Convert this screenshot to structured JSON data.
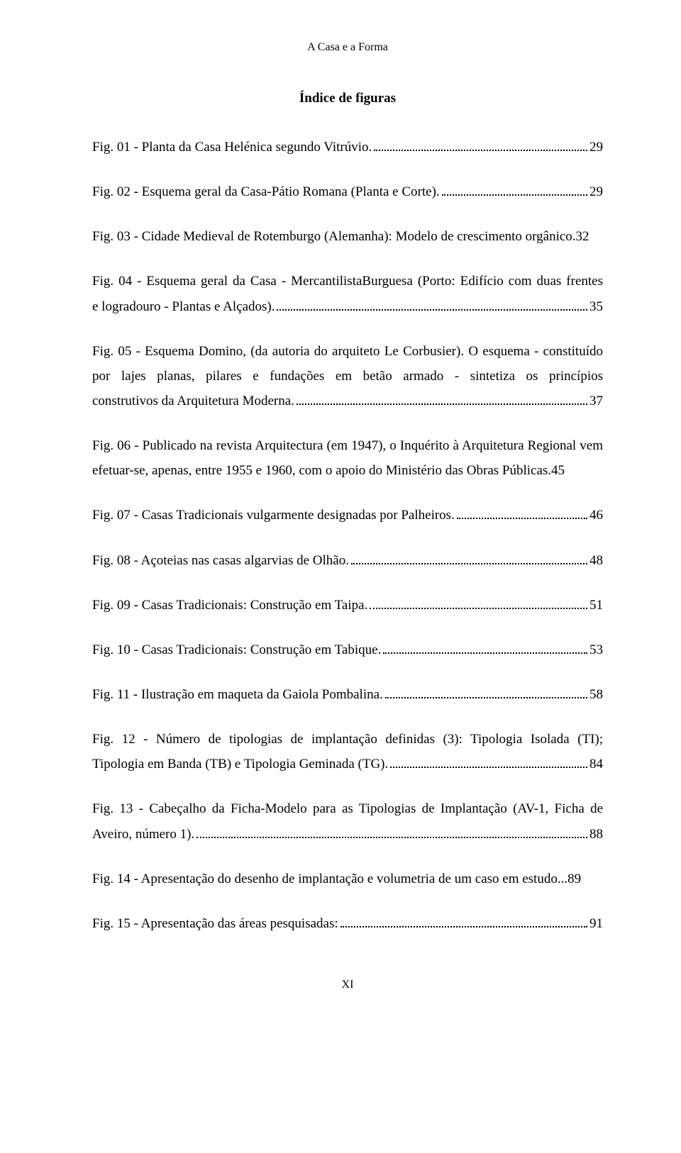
{
  "header": "A Casa e a Forma",
  "title": "Índice de figuras",
  "entries": [
    {
      "label": "Fig. 01 - Planta da Casa Helénica segundo Vitrúvio.",
      "page": "29",
      "multi": false
    },
    {
      "label": "Fig. 02 - Esquema geral da Casa-Pátio Romana (Planta e Corte).",
      "page": "29",
      "multi": false
    },
    {
      "pre": "Fig. 03 - Cidade Medieval de Rotemburgo (Alemanha): Modelo de crescimento orgânico.",
      "page": "32",
      "multi": true,
      "inline_page": true
    },
    {
      "pre": "Fig. 04 - Esquema geral da Casa - MercantilistaBurguesa (Porto: Edifício com duas frentes",
      "label": "e logradouro - Plantas e Alçados).",
      "page": "35",
      "multi": true
    },
    {
      "pre": "Fig. 05 - Esquema Domino, (da autoria do arquiteto Le Corbusier). O esquema - constituído por lajes planas, pilares e fundações em betão armado - sintetiza os princípios",
      "label": "construtivos da Arquitetura Moderna.",
      "page": "37",
      "multi": true
    },
    {
      "pre": "Fig. 06 - Publicado na revista Arquitectura (em 1947), o Inquérito à Arquitetura Regional vem efetuar-se, apenas, entre 1955 e 1960, com o apoio do Ministério das Obras Públicas.",
      "page": "45",
      "multi": true,
      "inline_page": true
    },
    {
      "label": "Fig. 07 - Casas Tradicionais vulgarmente designadas por Palheiros. ",
      "page": "46",
      "multi": false
    },
    {
      "label": "Fig. 08 - Açoteias nas casas algarvias de Olhão.",
      "page": "48",
      "multi": false
    },
    {
      "label": "Fig. 09 - Casas Tradicionais: Construção em Taipa.",
      "page": "51",
      "multi": false
    },
    {
      "label": "Fig. 10 - Casas Tradicionais: Construção em Tabique.",
      "page": "53",
      "multi": false
    },
    {
      "label": "Fig. 11 - Ilustração em maqueta da Gaiola Pombalina.",
      "page": "58",
      "multi": false
    },
    {
      "pre": "Fig. 12 - Número de tipologias de implantação definidas (3): Tipologia Isolada (TI);",
      "label": "Tipologia em Banda (TB) e Tipologia Geminada (TG). ",
      "page": "84",
      "multi": true
    },
    {
      "pre": "Fig. 13 - Cabeçalho da Ficha-Modelo para as Tipologias de Implantação (AV-1, Ficha de",
      "label": "Aveiro, número 1). ",
      "page": "88",
      "multi": true
    },
    {
      "label": "Fig. 14 - Apresentação do desenho de implantação e volumetria de um caso em estudo.",
      "page": "89",
      "multi": false,
      "tight": true
    },
    {
      "label": "Fig. 15 - Apresentação das áreas pesquisadas:",
      "page": "91",
      "multi": false
    }
  ],
  "footer": "XI"
}
